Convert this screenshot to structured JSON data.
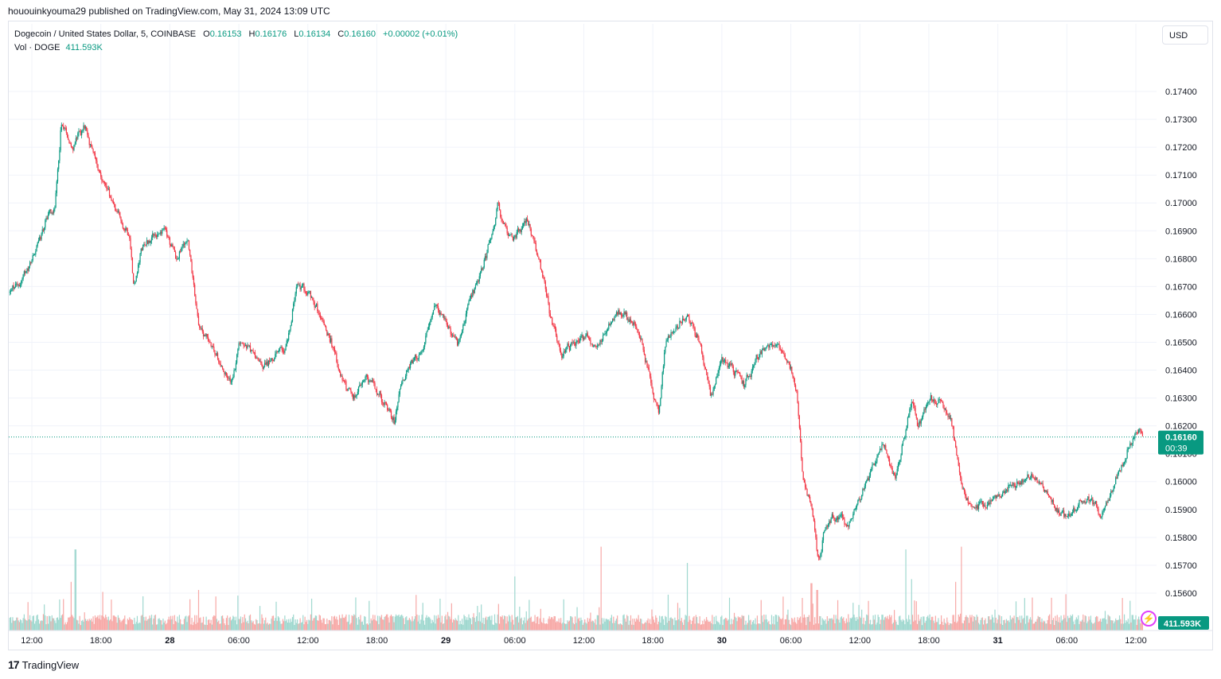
{
  "header": {
    "published": "hououinkyouma29 published on TradingView.com, May 31, 2024 13:09 UTC"
  },
  "legend": {
    "symbol": "Dogecoin / United States Dollar, 5, COINBASE",
    "open_label": "O",
    "open": "0.16153",
    "high_label": "H",
    "high": "0.16176",
    "low_label": "L",
    "low": "0.16134",
    "close_label": "C",
    "close": "0.16160",
    "change": "+0.00002 (+0.01%)",
    "vol_label": "Vol · DOGE",
    "vol": "411.593K"
  },
  "currency_button": "USD",
  "price_tag": {
    "price": "0.16160",
    "countdown": "00:39"
  },
  "volume_tag": "411.593K",
  "footer": {
    "brand": "TradingView"
  },
  "colors": {
    "up": "#089981",
    "down": "#f23645",
    "up_vol": "#9fd8cf",
    "down_vol": "#f7a9a7",
    "grid": "#f0f3fa"
  },
  "chart_data": {
    "type": "candlestick",
    "interval": "5m",
    "ylim": [
      0.155,
      0.1748
    ],
    "y_ticks": [
      "0.17400",
      "0.17300",
      "0.17200",
      "0.17100",
      "0.17000",
      "0.16900",
      "0.16800",
      "0.16700",
      "0.16600",
      "0.16500",
      "0.16400",
      "0.16300",
      "0.16200",
      "0.16100",
      "0.16000",
      "0.15900",
      "0.15800",
      "0.15700",
      "0.15600",
      "0.15500"
    ],
    "x_ticks": [
      {
        "label": "12:00",
        "t": 0.0
      },
      {
        "label": "18:00",
        "t": 6.0
      },
      {
        "label": "28",
        "t": 12.0
      },
      {
        "label": "06:00",
        "t": 18.0
      },
      {
        "label": "12:00",
        "t": 24.0
      },
      {
        "label": "18:00",
        "t": 30.0
      },
      {
        "label": "29",
        "t": 36.0
      },
      {
        "label": "06:00",
        "t": 42.0
      },
      {
        "label": "12:00",
        "t": 48.0
      },
      {
        "label": "18:00",
        "t": 54.0
      },
      {
        "label": "30",
        "t": 60.0
      },
      {
        "label": "06:00",
        "t": 66.0
      },
      {
        "label": "12:00",
        "t": 72.0
      },
      {
        "label": "18:00",
        "t": 78.0
      },
      {
        "label": "31",
        "t": 84.0
      },
      {
        "label": "06:00",
        "t": 90.0
      },
      {
        "label": "12:00",
        "t": 96.0
      }
    ],
    "t_start": -2.0,
    "t_end": 96.6,
    "current_price": 0.1616,
    "path": [
      {
        "t": -2.0,
        "p": 0.1668
      },
      {
        "t": -1.0,
        "p": 0.1672
      },
      {
        "t": 0.0,
        "p": 0.168
      },
      {
        "t": 1.0,
        "p": 0.1692
      },
      {
        "t": 2.0,
        "p": 0.17
      },
      {
        "t": 2.5,
        "p": 0.173
      },
      {
        "t": 3.5,
        "p": 0.172
      },
      {
        "t": 4.5,
        "p": 0.1728
      },
      {
        "t": 5.5,
        "p": 0.1715
      },
      {
        "t": 6.5,
        "p": 0.1705
      },
      {
        "t": 7.5,
        "p": 0.1695
      },
      {
        "t": 8.5,
        "p": 0.1688
      },
      {
        "t": 8.8,
        "p": 0.1668
      },
      {
        "t": 9.5,
        "p": 0.1685
      },
      {
        "t": 10.5,
        "p": 0.1688
      },
      {
        "t": 11.5,
        "p": 0.169
      },
      {
        "t": 12.5,
        "p": 0.168
      },
      {
        "t": 13.5,
        "p": 0.1688
      },
      {
        "t": 14.0,
        "p": 0.167
      },
      {
        "t": 14.5,
        "p": 0.1655
      },
      {
        "t": 15.5,
        "p": 0.165
      },
      {
        "t": 16.5,
        "p": 0.164
      },
      {
        "t": 17.3,
        "p": 0.1635
      },
      {
        "t": 18.0,
        "p": 0.165
      },
      {
        "t": 19.0,
        "p": 0.1648
      },
      {
        "t": 20.0,
        "p": 0.164
      },
      {
        "t": 21.0,
        "p": 0.1645
      },
      {
        "t": 22.0,
        "p": 0.1648
      },
      {
        "t": 23.0,
        "p": 0.167
      },
      {
        "t": 24.0,
        "p": 0.1668
      },
      {
        "t": 25.0,
        "p": 0.166
      },
      {
        "t": 26.0,
        "p": 0.165
      },
      {
        "t": 27.0,
        "p": 0.1635
      },
      {
        "t": 28.0,
        "p": 0.163
      },
      {
        "t": 29.0,
        "p": 0.1638
      },
      {
        "t": 30.0,
        "p": 0.1632
      },
      {
        "t": 31.0,
        "p": 0.1625
      },
      {
        "t": 31.5,
        "p": 0.162
      },
      {
        "t": 32.0,
        "p": 0.1635
      },
      {
        "t": 33.0,
        "p": 0.1642
      },
      {
        "t": 34.0,
        "p": 0.1648
      },
      {
        "t": 35.0,
        "p": 0.1665
      },
      {
        "t": 36.0,
        "p": 0.1655
      },
      {
        "t": 37.0,
        "p": 0.165
      },
      {
        "t": 38.0,
        "p": 0.1665
      },
      {
        "t": 39.0,
        "p": 0.1675
      },
      {
        "t": 40.0,
        "p": 0.169
      },
      {
        "t": 40.5,
        "p": 0.17
      },
      {
        "t": 41.0,
        "p": 0.169
      },
      {
        "t": 42.0,
        "p": 0.1688
      },
      {
        "t": 43.0,
        "p": 0.1695
      },
      {
        "t": 44.0,
        "p": 0.168
      },
      {
        "t": 45.0,
        "p": 0.166
      },
      {
        "t": 46.0,
        "p": 0.1645
      },
      {
        "t": 47.0,
        "p": 0.165
      },
      {
        "t": 48.0,
        "p": 0.1652
      },
      {
        "t": 49.0,
        "p": 0.1648
      },
      {
        "t": 50.0,
        "p": 0.1655
      },
      {
        "t": 51.0,
        "p": 0.1662
      },
      {
        "t": 52.0,
        "p": 0.1658
      },
      {
        "t": 53.0,
        "p": 0.165
      },
      {
        "t": 54.0,
        "p": 0.163
      },
      {
        "t": 54.5,
        "p": 0.1625
      },
      {
        "t": 55.0,
        "p": 0.165
      },
      {
        "t": 56.0,
        "p": 0.1655
      },
      {
        "t": 57.0,
        "p": 0.166
      },
      {
        "t": 58.0,
        "p": 0.165
      },
      {
        "t": 59.0,
        "p": 0.163
      },
      {
        "t": 60.0,
        "p": 0.1645
      },
      {
        "t": 61.0,
        "p": 0.164
      },
      {
        "t": 62.0,
        "p": 0.1635
      },
      {
        "t": 63.0,
        "p": 0.1645
      },
      {
        "t": 64.0,
        "p": 0.165
      },
      {
        "t": 65.0,
        "p": 0.1648
      },
      {
        "t": 66.0,
        "p": 0.164
      },
      {
        "t": 66.5,
        "p": 0.163
      },
      {
        "t": 67.0,
        "p": 0.16
      },
      {
        "t": 67.5,
        "p": 0.1595
      },
      {
        "t": 68.0,
        "p": 0.1585
      },
      {
        "t": 68.3,
        "p": 0.157
      },
      {
        "t": 69.0,
        "p": 0.1585
      },
      {
        "t": 70.0,
        "p": 0.1588
      },
      {
        "t": 71.0,
        "p": 0.1585
      },
      {
        "t": 72.0,
        "p": 0.1595
      },
      {
        "t": 73.0,
        "p": 0.1605
      },
      {
        "t": 74.0,
        "p": 0.1615
      },
      {
        "t": 75.0,
        "p": 0.16
      },
      {
        "t": 76.0,
        "p": 0.162
      },
      {
        "t": 76.5,
        "p": 0.163
      },
      {
        "t": 77.0,
        "p": 0.162
      },
      {
        "t": 78.0,
        "p": 0.163
      },
      {
        "t": 79.0,
        "p": 0.1628
      },
      {
        "t": 80.0,
        "p": 0.162
      },
      {
        "t": 80.5,
        "p": 0.1605
      },
      {
        "t": 81.0,
        "p": 0.1595
      },
      {
        "t": 82.0,
        "p": 0.159
      },
      {
        "t": 83.0,
        "p": 0.1592
      },
      {
        "t": 84.0,
        "p": 0.1595
      },
      {
        "t": 85.0,
        "p": 0.1598
      },
      {
        "t": 86.0,
        "p": 0.16
      },
      {
        "t": 87.0,
        "p": 0.1602
      },
      {
        "t": 88.0,
        "p": 0.1598
      },
      {
        "t": 89.0,
        "p": 0.159
      },
      {
        "t": 90.0,
        "p": 0.1588
      },
      {
        "t": 91.0,
        "p": 0.1593
      },
      {
        "t": 92.0,
        "p": 0.1595
      },
      {
        "t": 93.0,
        "p": 0.1588
      },
      {
        "t": 94.0,
        "p": 0.1598
      },
      {
        "t": 95.0,
        "p": 0.1608
      },
      {
        "t": 95.5,
        "p": 0.1614
      },
      {
        "t": 96.0,
        "p": 0.162
      },
      {
        "t": 96.6,
        "p": 0.1616
      }
    ],
    "spikes": [
      {
        "t": 3.8,
        "v": 0.6
      },
      {
        "t": 3.4,
        "v": 0.36
      },
      {
        "t": 14.5,
        "v": 0.3
      },
      {
        "t": 42.0,
        "v": 0.4
      },
      {
        "t": 49.5,
        "v": 0.62
      },
      {
        "t": 57.0,
        "v": 0.5
      },
      {
        "t": 67.8,
        "v": 0.35
      },
      {
        "t": 68.3,
        "v": 0.3
      },
      {
        "t": 76.0,
        "v": 0.6
      },
      {
        "t": 76.5,
        "v": 0.38
      },
      {
        "t": 80.8,
        "v": 0.62
      },
      {
        "t": 80.3,
        "v": 0.36
      },
      {
        "t": 95.5,
        "v": 0.22
      }
    ]
  }
}
